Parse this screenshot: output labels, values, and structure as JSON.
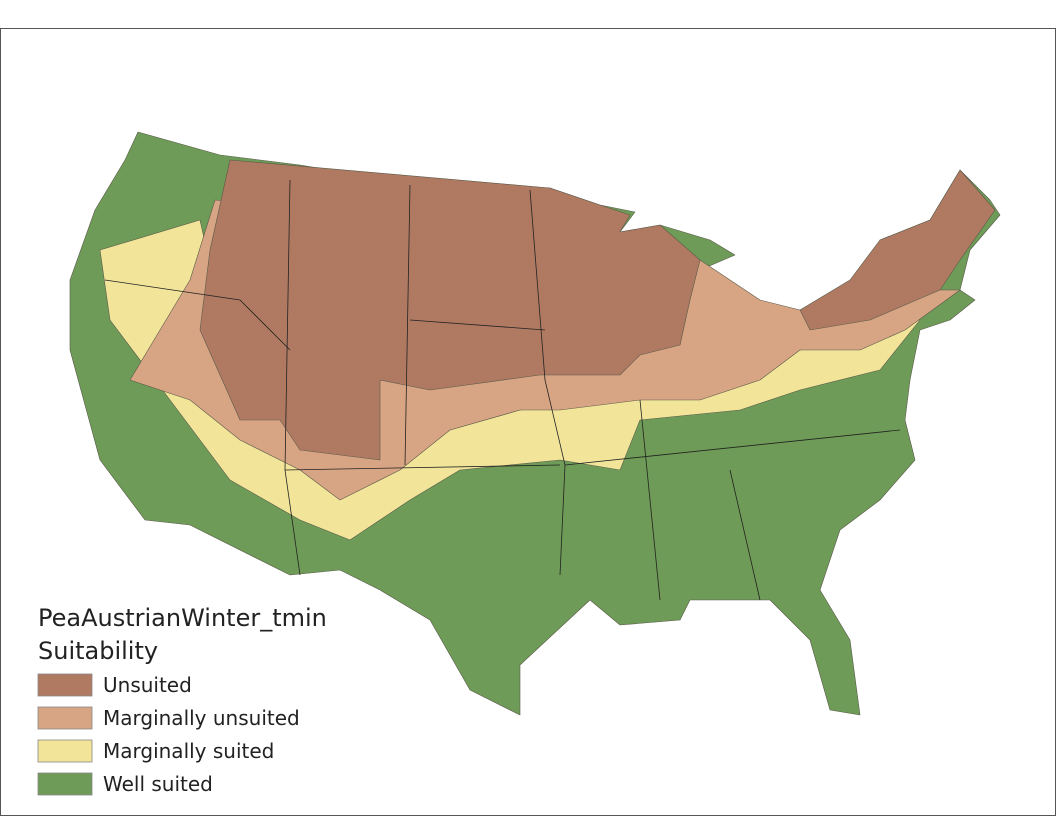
{
  "legend": {
    "title": "PeaAustrianWinter_tmin",
    "subtitle": "Suitability",
    "items": [
      {
        "label": "Unsuited",
        "color": "#b07a62"
      },
      {
        "label": "Marginally unsuited",
        "color": "#d8a584"
      },
      {
        "label": "Marginally suited",
        "color": "#f2e59a"
      },
      {
        "label": "Well suited",
        "color": "#6e9b57"
      }
    ]
  }
}
